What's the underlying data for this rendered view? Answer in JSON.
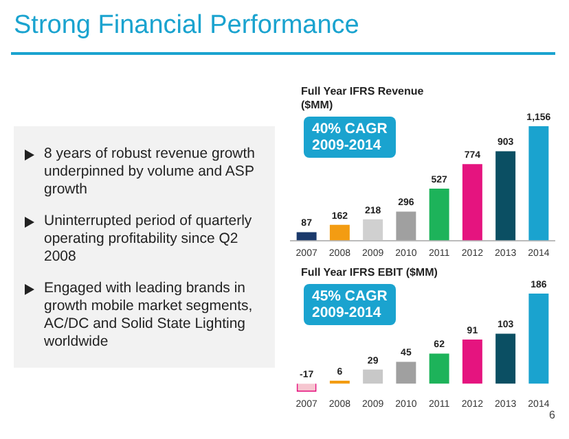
{
  "chart_data": [
    {
      "type": "other",
      "title": "Strong Financial Performance",
      "annotations": [
        "8 years of robust revenue growth underpinned by volume and ASP growth",
        "Uninterrupted period of quarterly operating profitability since Q2 2008",
        "Engaged with leading brands in growth mobile market segments, AC/DC and Solid State Lighting worldwide",
        "6"
      ]
    },
    {
      "type": "bar",
      "title": "Full Year IFRS Revenue ($MM)",
      "categories": [
        "2007",
        "2008",
        "2009",
        "2010",
        "2011",
        "2012",
        "2013",
        "2014"
      ],
      "values": [
        87,
        162,
        218,
        296,
        527,
        774,
        903,
        1156
      ],
      "value_labels": [
        "87",
        "162",
        "218",
        "296",
        "527",
        "774",
        "903",
        "1,156"
      ],
      "colors": [
        "#1b3a6b",
        "#f39c12",
        "#d0d0d0",
        "#a0a0a0",
        "#1db35a",
        "#e5147f",
        "#0b4f63",
        "#1aa3cf"
      ],
      "annotations": [
        "40% CAGR\n2009-2014"
      ]
    },
    {
      "type": "bar",
      "title": "Full Year IFRS EBIT ($MM)",
      "categories": [
        "2007",
        "2008",
        "2009",
        "2010",
        "2011",
        "2012",
        "2013",
        "2014"
      ],
      "values": [
        -17,
        6,
        29,
        45,
        62,
        91,
        103,
        186
      ],
      "value_labels": [
        "-17",
        "6",
        "29",
        "45",
        "62",
        "91",
        "103",
        "186"
      ],
      "colors": [
        "#f6c6d0",
        "#f39c12",
        "#c8c8c8",
        "#a0a0a0",
        "#1db35a",
        "#e5147f",
        "#0b4f63",
        "#1aa3cf"
      ],
      "annotations": [
        "45% CAGR\n2009-2014"
      ]
    }
  ]
}
